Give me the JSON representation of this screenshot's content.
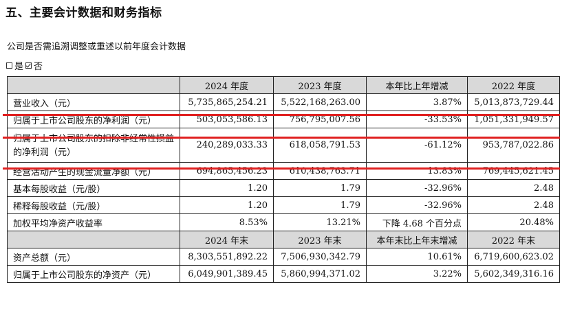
{
  "title": "五、主要会计数据和财务指标",
  "subtitle": "公司是否需追溯调整或重述以前年度会计数据",
  "choice": {
    "yes": "是",
    "no": "否"
  },
  "table": {
    "header1": [
      "",
      "2024 年度",
      "2023 年度",
      "本年比上年增减",
      "2022 年度"
    ],
    "rows1": [
      {
        "label": "营业收入（元）",
        "c1": "5,735,865,254.21",
        "c2": "5,522,168,263.00",
        "c3": "3.87%",
        "c4": "5,013,873,729.44"
      },
      {
        "label": "归属于上市公司股东的净利润（元）",
        "c1": "503,053,586.13",
        "c2": "756,795,007.56",
        "c3": "-33.53%",
        "c4": "1,051,331,949.57"
      },
      {
        "label": "归属于上市公司股东的扣除非经常性损益的净利润（元）",
        "c1": "240,289,033.33",
        "c2": "618,058,791.53",
        "c3": "-61.12%",
        "c4": "953,787,022.86"
      },
      {
        "label": "经营活动产生的现金流量净额（元）",
        "c1": "694,865,456.23",
        "c2": "610,438,763.71",
        "c3": "13.83%",
        "c4": "769,445,621.45"
      },
      {
        "label": "基本每股收益（元/股）",
        "c1": "1.20",
        "c2": "1.79",
        "c3": "-32.96%",
        "c4": "2.48"
      },
      {
        "label": "稀释每股收益（元/股）",
        "c1": "1.20",
        "c2": "1.79",
        "c3": "-32.96%",
        "c4": "2.48"
      },
      {
        "label": "加权平均净资产收益率",
        "c1": "8.53%",
        "c2": "13.21%",
        "c3": "下降 4.68 个百分点",
        "c4": "20.48%"
      }
    ],
    "header2": [
      "",
      "2024 年末",
      "2023 年末",
      "本年末比上年末增减",
      "2022 年末"
    ],
    "rows2": [
      {
        "label": "资产总额（元）",
        "c1": "8,303,551,892.22",
        "c2": "7,506,930,342.79",
        "c3": "10.61%",
        "c4": "6,719,600,623.02"
      },
      {
        "label": "归属于上市公司股东的净资产（元）",
        "c1": "6,049,901,389.45",
        "c2": "5,860,994,371.02",
        "c3": "3.22%",
        "c4": "5,602,349,316.16"
      }
    ]
  },
  "colors": {
    "header_bg": "#d9d9d9",
    "highlight_line": "#e02020"
  }
}
